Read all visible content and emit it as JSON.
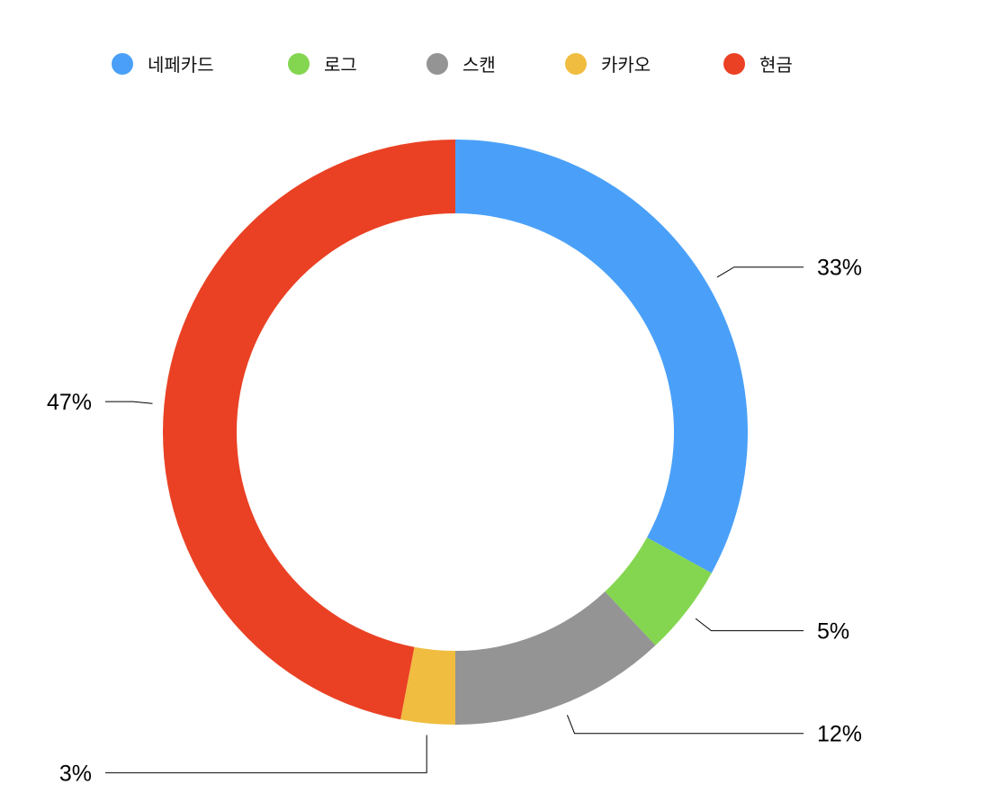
{
  "chart_data": {
    "type": "pie",
    "variant": "donut",
    "categories": [
      "네페카드",
      "로그",
      "스캔",
      "카카오",
      "현금"
    ],
    "values": [
      33,
      5,
      12,
      3,
      47
    ],
    "data_labels": [
      "33%",
      "5%",
      "12%",
      "3%",
      "47%"
    ],
    "colors": [
      "#4aa0f8",
      "#84d650",
      "#949494",
      "#f0bd40",
      "#ea4124"
    ],
    "legend_position": "top",
    "start_angle": "top, clockwise"
  }
}
